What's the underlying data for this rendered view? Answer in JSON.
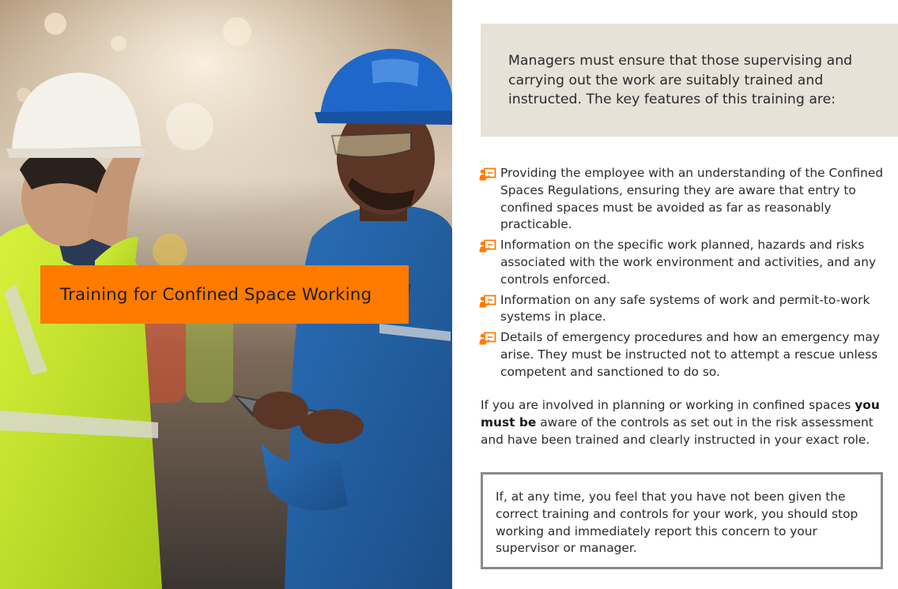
{
  "title": "Training for Confined Space Working",
  "intro": "Managers must ensure that those supervising and carrying out the work are suitably trained and instructed. The key features of this training are:",
  "features": [
    "Providing the employee with an understanding of the Confined Spaces Regulations, ensuring they are aware that entry to confined spaces must be avoided as far as reasonably practicable.",
    "Information on the specific work planned, hazards and risks associated with the work environment and activities, and any controls enforced.",
    "Information on any safe systems of work and permit-to-work systems in place.",
    "Details of emergency procedures and how an emergency may arise. They must be instructed not to attempt a rescue unless competent and sanctioned to do so."
  ],
  "involved": {
    "before": "If you are involved in planning or working in confined spaces ",
    "emphasis": "you must be",
    "after": " aware of the controls as set out in the risk assessment and have been trained and clearly instructed in your exact role."
  },
  "warning": "If, at any time, you feel that you have not been given the correct training and controls for your work, you should stop working and immediately report this concern to your supervisor or manager.",
  "icons": {
    "bullet": "presenter-board-icon"
  },
  "colors": {
    "accent": "#ff7b00",
    "intro_bg": "#e6e2d8",
    "warning_border": "#8a8a8a",
    "text": "#2b2b2b"
  }
}
